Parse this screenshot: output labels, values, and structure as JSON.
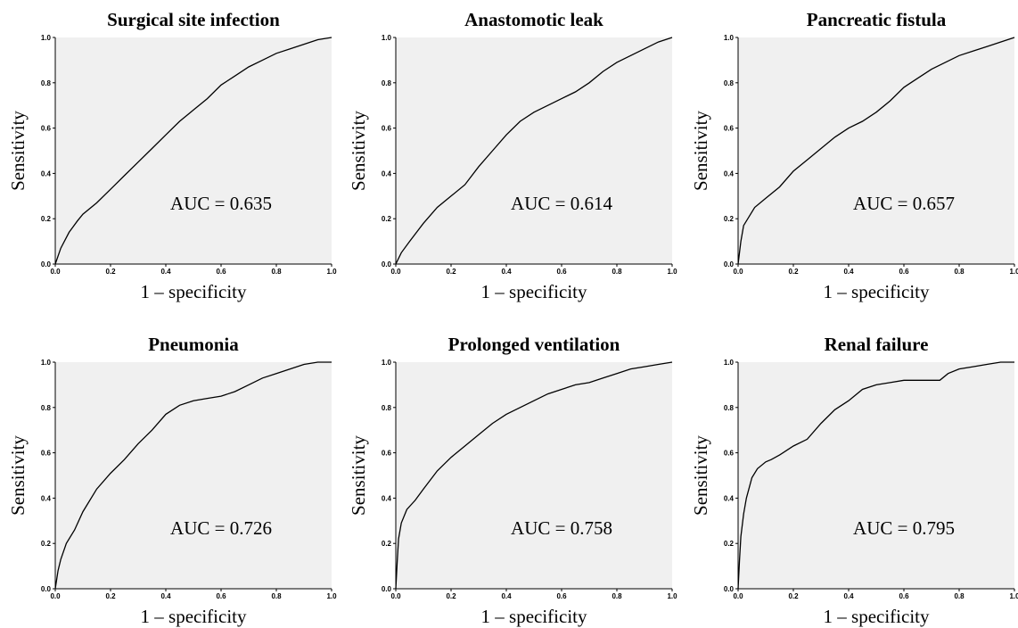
{
  "chart_data": [
    {
      "type": "line",
      "title": "Surgical site infection",
      "xlabel": "1 – specificity",
      "ylabel": "Sensitivity",
      "annotation": "AUC = 0.635",
      "xlim": [
        0,
        1
      ],
      "ylim": [
        0,
        1
      ],
      "x_ticks": [
        "0.0",
        "0.2",
        "0.4",
        "0.6",
        "0.8",
        "1.0"
      ],
      "y_ticks": [
        "0.0",
        "0.2",
        "0.4",
        "0.6",
        "0.8",
        "1.0"
      ],
      "grid": false,
      "x": [
        0,
        0.02,
        0.05,
        0.08,
        0.1,
        0.15,
        0.2,
        0.25,
        0.3,
        0.35,
        0.4,
        0.45,
        0.5,
        0.55,
        0.6,
        0.65,
        0.7,
        0.75,
        0.8,
        0.85,
        0.9,
        0.95,
        1.0
      ],
      "y": [
        0,
        0.07,
        0.14,
        0.19,
        0.22,
        0.27,
        0.33,
        0.39,
        0.45,
        0.51,
        0.57,
        0.63,
        0.68,
        0.73,
        0.79,
        0.83,
        0.87,
        0.9,
        0.93,
        0.95,
        0.97,
        0.99,
        1.0
      ]
    },
    {
      "type": "line",
      "title": "Anastomotic leak",
      "xlabel": "1 – specificity",
      "ylabel": "Sensitivity",
      "annotation": "AUC = 0.614",
      "xlim": [
        0,
        1
      ],
      "ylim": [
        0,
        1
      ],
      "x_ticks": [
        "0.0",
        "0.2",
        "0.4",
        "0.6",
        "0.8",
        "1.0"
      ],
      "y_ticks": [
        "0.0",
        "0.2",
        "0.4",
        "0.6",
        "0.8",
        "1.0"
      ],
      "grid": false,
      "x": [
        0,
        0.02,
        0.05,
        0.1,
        0.15,
        0.2,
        0.25,
        0.3,
        0.35,
        0.4,
        0.45,
        0.5,
        0.55,
        0.6,
        0.65,
        0.7,
        0.75,
        0.8,
        0.85,
        0.9,
        0.95,
        1.0
      ],
      "y": [
        0,
        0.05,
        0.1,
        0.18,
        0.25,
        0.3,
        0.35,
        0.43,
        0.5,
        0.57,
        0.63,
        0.67,
        0.7,
        0.73,
        0.76,
        0.8,
        0.85,
        0.89,
        0.92,
        0.95,
        0.98,
        1.0
      ]
    },
    {
      "type": "line",
      "title": "Pancreatic fistula",
      "xlabel": "1 – specificity",
      "ylabel": "Sensitivity",
      "annotation": "AUC = 0.657",
      "xlim": [
        0,
        1
      ],
      "ylim": [
        0,
        1
      ],
      "x_ticks": [
        "0.0",
        "0.2",
        "0.4",
        "0.6",
        "0.8",
        "1.0"
      ],
      "y_ticks": [
        "0.0",
        "0.2",
        "0.4",
        "0.6",
        "0.8",
        "1.0"
      ],
      "grid": false,
      "x": [
        0,
        0.01,
        0.02,
        0.04,
        0.06,
        0.1,
        0.15,
        0.2,
        0.25,
        0.3,
        0.35,
        0.4,
        0.45,
        0.5,
        0.55,
        0.6,
        0.65,
        0.7,
        0.75,
        0.8,
        0.85,
        0.9,
        0.95,
        1.0
      ],
      "y": [
        0,
        0.1,
        0.17,
        0.21,
        0.25,
        0.29,
        0.34,
        0.41,
        0.46,
        0.51,
        0.56,
        0.6,
        0.63,
        0.67,
        0.72,
        0.78,
        0.82,
        0.86,
        0.89,
        0.92,
        0.94,
        0.96,
        0.98,
        1.0
      ]
    },
    {
      "type": "line",
      "title": "Pneumonia",
      "xlabel": "1 – specificity",
      "ylabel": "Sensitivity",
      "annotation": "AUC = 0.726",
      "xlim": [
        0,
        1
      ],
      "ylim": [
        0,
        1
      ],
      "x_ticks": [
        "0.0",
        "0.2",
        "0.4",
        "0.6",
        "0.8",
        "1.0"
      ],
      "y_ticks": [
        "0.0",
        "0.2",
        "0.4",
        "0.6",
        "0.8",
        "1.0"
      ],
      "grid": false,
      "x": [
        0,
        0.01,
        0.02,
        0.04,
        0.07,
        0.1,
        0.15,
        0.2,
        0.25,
        0.3,
        0.35,
        0.4,
        0.45,
        0.5,
        0.55,
        0.6,
        0.65,
        0.7,
        0.75,
        0.8,
        0.85,
        0.9,
        0.95,
        1.0
      ],
      "y": [
        0,
        0.08,
        0.13,
        0.2,
        0.26,
        0.34,
        0.44,
        0.51,
        0.57,
        0.64,
        0.7,
        0.77,
        0.81,
        0.83,
        0.84,
        0.85,
        0.87,
        0.9,
        0.93,
        0.95,
        0.97,
        0.99,
        1.0,
        1.0
      ]
    },
    {
      "type": "line",
      "title": "Prolonged ventilation",
      "xlabel": "1 – specificity",
      "ylabel": "Sensitivity",
      "annotation": "AUC = 0.758",
      "xlim": [
        0,
        1
      ],
      "ylim": [
        0,
        1
      ],
      "x_ticks": [
        "0.0",
        "0.2",
        "0.4",
        "0.6",
        "0.8",
        "1.0"
      ],
      "y_ticks": [
        "0.0",
        "0.2",
        "0.4",
        "0.6",
        "0.8",
        "1.0"
      ],
      "grid": false,
      "x": [
        0,
        0.005,
        0.01,
        0.02,
        0.04,
        0.07,
        0.1,
        0.15,
        0.2,
        0.25,
        0.3,
        0.35,
        0.4,
        0.45,
        0.5,
        0.55,
        0.6,
        0.65,
        0.7,
        0.75,
        0.8,
        0.85,
        0.9,
        0.95,
        1.0
      ],
      "y": [
        0,
        0.12,
        0.22,
        0.29,
        0.35,
        0.39,
        0.44,
        0.52,
        0.58,
        0.63,
        0.68,
        0.73,
        0.77,
        0.8,
        0.83,
        0.86,
        0.88,
        0.9,
        0.91,
        0.93,
        0.95,
        0.97,
        0.98,
        0.99,
        1.0
      ]
    },
    {
      "type": "line",
      "title": "Renal failure",
      "xlabel": "1 – specificity",
      "ylabel": "Sensitivity",
      "annotation": "AUC = 0.795",
      "xlim": [
        0,
        1
      ],
      "ylim": [
        0,
        1
      ],
      "x_ticks": [
        "0.0",
        "0.2",
        "0.4",
        "0.6",
        "0.8",
        "1.0"
      ],
      "y_ticks": [
        "0.0",
        "0.2",
        "0.4",
        "0.6",
        "0.8",
        "1.0"
      ],
      "grid": false,
      "x": [
        0,
        0.005,
        0.01,
        0.02,
        0.03,
        0.05,
        0.07,
        0.1,
        0.12,
        0.15,
        0.2,
        0.25,
        0.3,
        0.35,
        0.4,
        0.45,
        0.5,
        0.55,
        0.6,
        0.65,
        0.7,
        0.73,
        0.76,
        0.8,
        0.85,
        0.9,
        0.95,
        1.0
      ],
      "y": [
        0,
        0.12,
        0.23,
        0.33,
        0.4,
        0.49,
        0.53,
        0.56,
        0.57,
        0.59,
        0.63,
        0.66,
        0.73,
        0.79,
        0.83,
        0.88,
        0.9,
        0.91,
        0.92,
        0.92,
        0.92,
        0.92,
        0.95,
        0.97,
        0.98,
        0.99,
        1.0,
        1.0
      ]
    }
  ]
}
